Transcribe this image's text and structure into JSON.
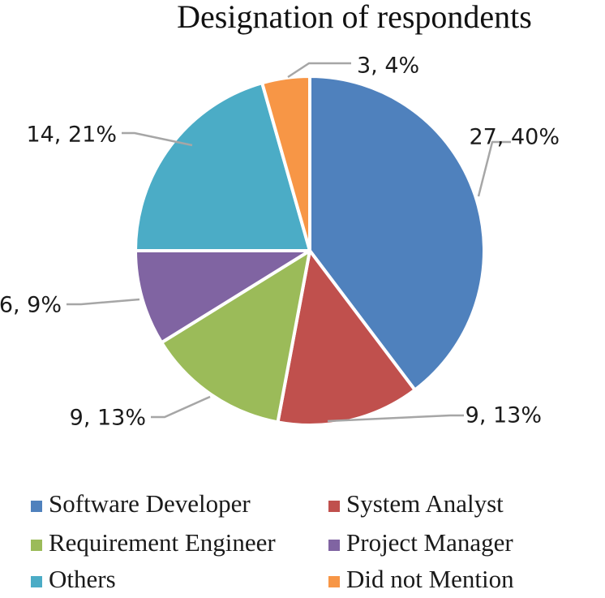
{
  "chart_data": {
    "type": "pie",
    "title": "Designation of respondents",
    "slices": [
      {
        "name": "Software Developer",
        "value": 27,
        "percent": 40,
        "label": "27, 40%",
        "color": "#4F81BD"
      },
      {
        "name": "System Analyst",
        "value": 9,
        "percent": 13,
        "label": "9, 13%",
        "color": "#C0504D"
      },
      {
        "name": "Requirement Engineer",
        "value": 9,
        "percent": 13,
        "label": "9, 13%",
        "color": "#9BBB59"
      },
      {
        "name": "Project Manager",
        "value": 6,
        "percent": 9,
        "label": "6, 9%",
        "color": "#8064A2"
      },
      {
        "name": "Others",
        "value": 14,
        "percent": 21,
        "label": "14, 21%",
        "color": "#4BACC6"
      },
      {
        "name": "Did not Mention",
        "value": 3,
        "percent": 4,
        "label": "3, 4%",
        "color": "#F79646"
      }
    ],
    "legend_position": "bottom"
  }
}
